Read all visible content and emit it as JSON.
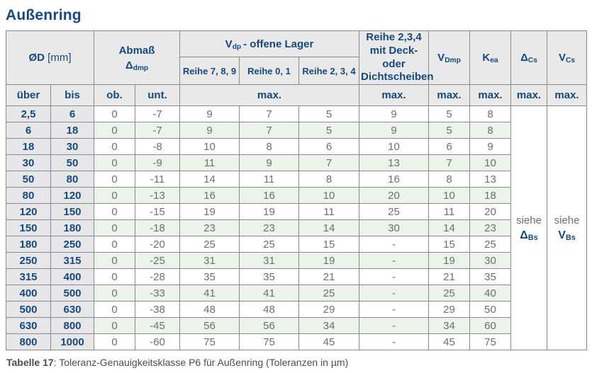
{
  "page": {
    "title": "Außenring",
    "caption_bold": "Tabelle 17",
    "caption_rest": ": Toleranz-Genauigkeitsklasse P6 für Außenring (Toleranzen in µm)"
  },
  "colors": {
    "accent_blue": "#16497d",
    "header_bg": "#e9e9e9",
    "range_col_bg": "#e7e7e9",
    "row_green": "#ebf3ea",
    "value_text": "#6f6f6f",
    "border": "#8a8a8a"
  },
  "header": {
    "diameter": {
      "base": "ØD",
      "unit": " [mm]"
    },
    "abmass": {
      "line1": "Abmaß",
      "sym_base": "Δ",
      "sym_sub": "dmp"
    },
    "vdp": {
      "base": "V",
      "sub": "dp",
      "rest": "-  offene Lager"
    },
    "reihe789": "Reihe 7, 8, 9",
    "reihe01": "Reihe 0, 1",
    "reihe234": "Reihe 2, 3, 4",
    "deck": {
      "line1": "Reihe 2,3,4",
      "line2": "mit Deck- oder",
      "line3": "Dichtscheiben"
    },
    "vdmp": {
      "base": "V",
      "sub": "Dmp"
    },
    "kea": {
      "base": "K",
      "sub": "ea"
    },
    "dcs": {
      "base": "Δ",
      "sub": "Cs"
    },
    "vcs": {
      "base": "V",
      "sub": "Cs"
    },
    "ueber": "über",
    "bis": "bis",
    "ob": "ob.",
    "unt": "unt.",
    "max": "max."
  },
  "table": {
    "columns": [
      "über",
      "bis",
      "ob.",
      "unt.",
      "Reihe 7,8,9",
      "Reihe 0,1",
      "Reihe 2,3,4",
      "Reihe 2,3,4 mit Deck- oder Dichtscheiben",
      "V Dmp",
      "K ea"
    ],
    "rows": [
      [
        "2,5",
        "6",
        "0",
        "-7",
        "9",
        "7",
        "5",
        "9",
        "5",
        "8"
      ],
      [
        "6",
        "18",
        "0",
        "-7",
        "9",
        "7",
        "5",
        "9",
        "5",
        "8"
      ],
      [
        "18",
        "30",
        "0",
        "-8",
        "10",
        "8",
        "6",
        "10",
        "6",
        "9"
      ],
      [
        "30",
        "50",
        "0",
        "-9",
        "11",
        "9",
        "7",
        "13",
        "7",
        "10"
      ],
      [
        "50",
        "80",
        "0",
        "-11",
        "14",
        "11",
        "8",
        "16",
        "8",
        "13"
      ],
      [
        "80",
        "120",
        "0",
        "-13",
        "16",
        "16",
        "10",
        "20",
        "10",
        "18"
      ],
      [
        "120",
        "150",
        "0",
        "-15",
        "19",
        "19",
        "11",
        "25",
        "11",
        "20"
      ],
      [
        "150",
        "180",
        "0",
        "-18",
        "23",
        "23",
        "14",
        "30",
        "14",
        "23"
      ],
      [
        "180",
        "250",
        "0",
        "-20",
        "25",
        "25",
        "15",
        "-",
        "15",
        "25"
      ],
      [
        "250",
        "315",
        "0",
        "-25",
        "31",
        "31",
        "19",
        "-",
        "19",
        "30"
      ],
      [
        "315",
        "400",
        "0",
        "-28",
        "35",
        "35",
        "21",
        "-",
        "21",
        "35"
      ],
      [
        "400",
        "500",
        "0",
        "-33",
        "41",
        "41",
        "25",
        "-",
        "25",
        "40"
      ],
      [
        "500",
        "630",
        "0",
        "-38",
        "48",
        "48",
        "29",
        "-",
        "29",
        "50"
      ],
      [
        "630",
        "800",
        "0",
        "-45",
        "56",
        "56",
        "34",
        "-",
        "34",
        "60"
      ],
      [
        "800",
        "1000",
        "0",
        "-60",
        "75",
        "75",
        "45",
        "-",
        "45",
        "75"
      ]
    ],
    "siehe_dcs": {
      "label": "siehe",
      "base": "Δ",
      "sub": "Bs"
    },
    "siehe_vcs": {
      "label": "siehe",
      "base": "V",
      "sub": "Bs"
    }
  }
}
